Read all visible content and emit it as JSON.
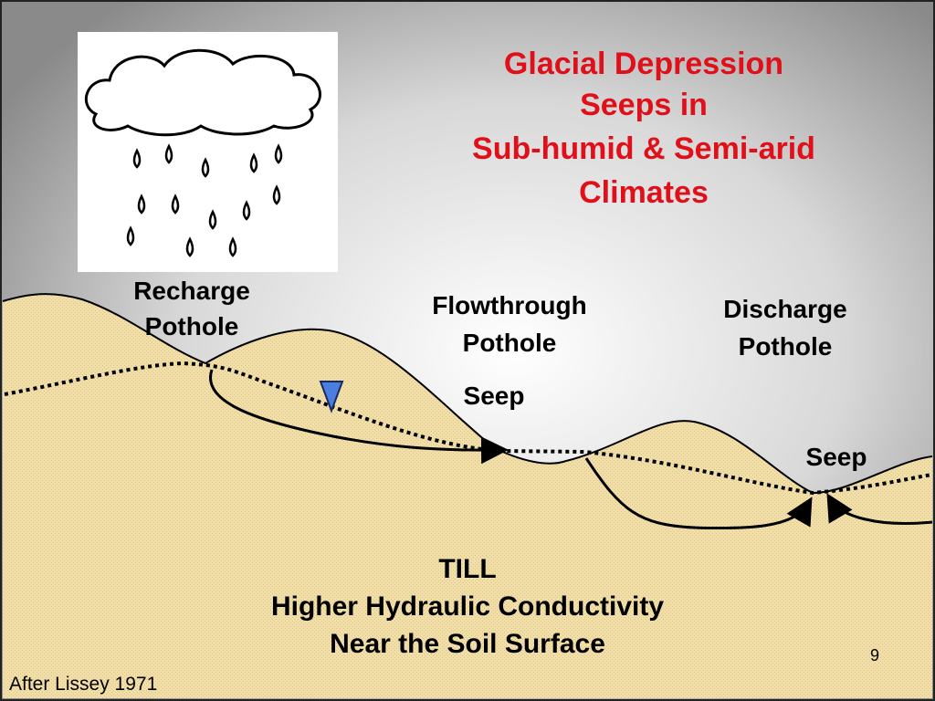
{
  "title": [
    "Glacial Depression",
    "Seeps in",
    "Sub-humid & Semi-arid",
    "Climates"
  ],
  "recharge": [
    "Recharge",
    "Pothole"
  ],
  "flowthrough": [
    "Flowthrough",
    "Pothole"
  ],
  "discharge": [
    "Discharge",
    "Pothole"
  ],
  "seep_left": "Seep",
  "seep_right": "Seep",
  "till": [
    "TILL",
    "Higher Hydraulic Conductivity",
    "Near the Soil Surface"
  ],
  "page_number": "9",
  "citation": "After Lissey 1971"
}
